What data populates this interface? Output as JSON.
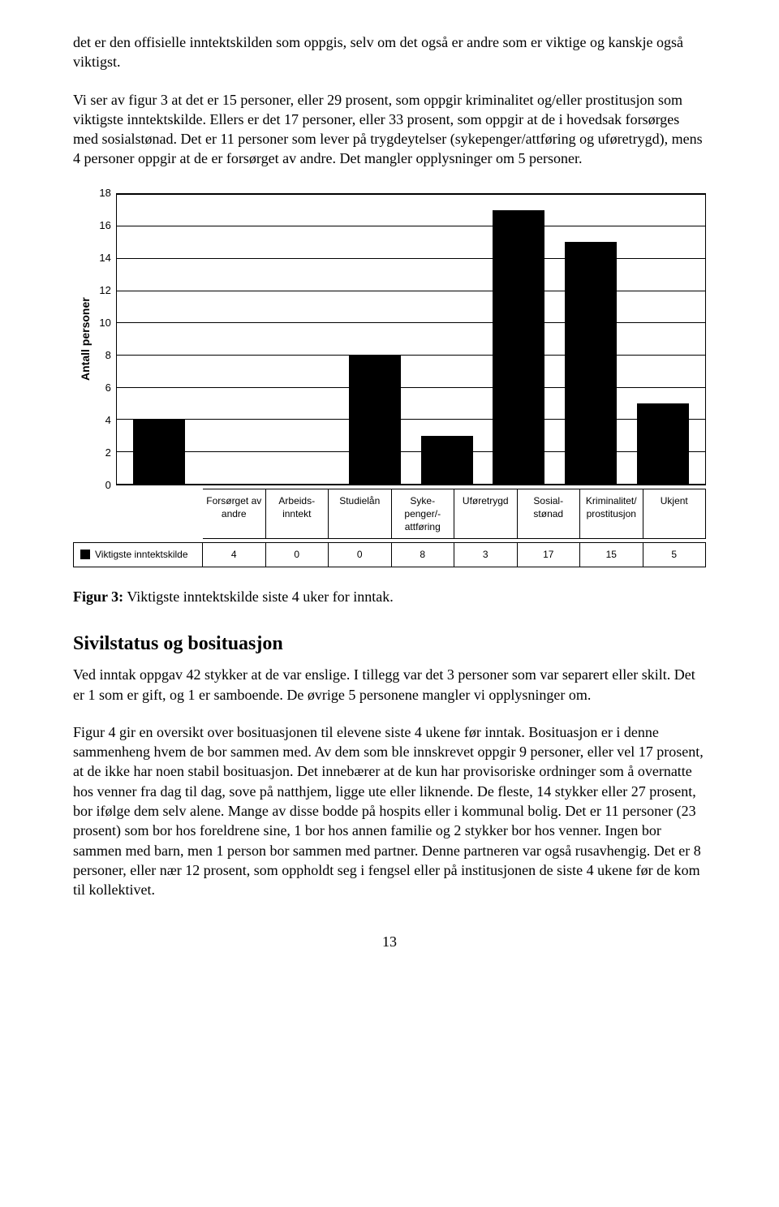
{
  "paragraphs": {
    "p1": "det er den offisielle inntektskilden som oppgis, selv om det også er andre som er viktige og kanskje også viktigst.",
    "p2": "Vi ser av figur 3 at det er 15 personer, eller 29 prosent, som oppgir kriminalitet og/eller prostitusjon som viktigste inntektskilde. Ellers er det 17 personer, eller 33 prosent, som oppgir at de i hovedsak forsørges med sosialstønad. Det er 11 personer som lever på trygdeytelser (sykepenger/attføring og uføretrygd), mens 4 personer oppgir at de er forsørget av andre. Det mangler opplysninger om 5 personer.",
    "p3": "Ved inntak oppgav 42 stykker at de var enslige. I tillegg var det 3 personer som var separert eller skilt. Det er 1 som er gift, og 1 er samboende. De øvrige 5 personene mangler vi opplysninger om.",
    "p4": "Figur 4 gir en oversikt over bosituasjonen til elevene siste 4 ukene før inntak. Bosituasjon er i denne sammenheng hvem de bor sammen med. Av dem som ble innskrevet oppgir 9 personer, eller vel 17 prosent, at de ikke har noen stabil bosituasjon. Det innebærer at de kun har provisoriske ordninger som å overnatte hos venner fra dag til dag, sove på natthjem, ligge ute eller liknende. De fleste, 14 stykker eller 27 prosent, bor ifølge dem selv alene. Mange av disse bodde på hospits eller i kommunal bolig. Det er 11 personer (23 prosent) som bor hos foreldrene sine, 1 bor hos annen familie og 2 stykker bor hos venner. Ingen bor sammen med barn, men 1 person bor sammen med partner. Denne partneren var også rusavhengig. Det er 8 personer, eller nær 12 prosent, som oppholdt seg i fengsel eller på institusjonen de siste 4 ukene før de kom til kollektivet."
  },
  "chart": {
    "type": "bar",
    "y_axis_label": "Antall personer",
    "ylim": [
      0,
      18
    ],
    "ytick_step": 2,
    "yticks": [
      18,
      16,
      14,
      12,
      10,
      8,
      6,
      4,
      2,
      0
    ],
    "categories": [
      "Forsørget av andre",
      "Arbeids-inntekt",
      "Studielån",
      "Syke-penger/-attføring",
      "Uføretrygd",
      "Sosial-stønad",
      "Kriminalitet/ prostitusjon",
      "Ukjent"
    ],
    "series_label": "Viktigste inntektskilde",
    "values": [
      4,
      0,
      0,
      8,
      3,
      17,
      15,
      5
    ],
    "bar_color": "#000000",
    "background_color": "#ffffff",
    "border_color": "#000000",
    "grid_color": "#000000",
    "label_fontsize": 13,
    "title_fontsize": 14
  },
  "figure_caption": {
    "label": "Figur 3:",
    "text": " Viktigste inntektskilde siste 4 uker for inntak."
  },
  "section_heading": "Sivilstatus og bosituasjon",
  "page_number": "13"
}
